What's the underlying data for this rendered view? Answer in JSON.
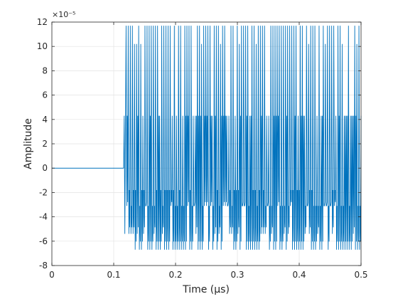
{
  "chart_data": {
    "type": "line",
    "title": "",
    "xlabel": "Time (μs)",
    "ylabel": "Amplitude",
    "xlim": [
      0,
      0.5
    ],
    "ylim": [
      -8e-05,
      0.00012
    ],
    "y_exponent_label": "×10⁻⁵",
    "xticks": [
      0,
      0.1,
      0.2,
      0.3,
      0.4,
      0.5
    ],
    "xtick_labels": [
      "0",
      "0.1",
      "0.2",
      "0.3",
      "0.4",
      "0.5"
    ],
    "yticks": [
      -8,
      -6,
      -4,
      -2,
      0,
      2,
      4,
      6,
      8,
      10,
      12
    ],
    "ytick_labels": [
      "-8",
      "-6",
      "-4",
      "-2",
      "0",
      "2",
      "4",
      "6",
      "8",
      "10",
      "12"
    ],
    "grid": true,
    "series": [
      {
        "color": "#0072BD",
        "flat": {
          "x": [
            0,
            0.116
          ],
          "y": 0
        },
        "onset_x": 0.116,
        "burst": {
          "x_start": 0.116,
          "x_end": 0.5,
          "peak_high": 0.000117,
          "peak_low_level": 0.000102,
          "trough_low": -6.7e-05,
          "trough_high_level": -5.4e-05,
          "mid_levels": [
            4.3e-05,
            -1.8e-05,
            -3.1e-05
          ],
          "spikes": 112
        }
      }
    ]
  },
  "colors": {
    "line": "#0072BD",
    "grid": "#e3e3e3",
    "axis": "#262626"
  }
}
